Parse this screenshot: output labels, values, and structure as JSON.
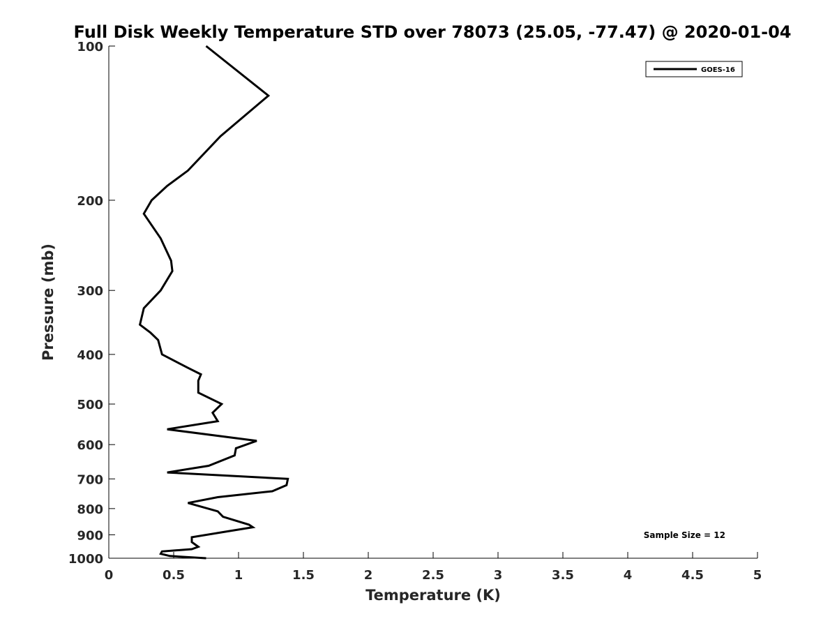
{
  "chart_data": {
    "type": "line",
    "title": "Full Disk Weekly Temperature STD over 78073 (25.05, -77.47) @ 2020-01-04",
    "xlabel": "Temperature (K)",
    "ylabel": "Pressure (mb)",
    "xlim": [
      0,
      5
    ],
    "ylim": [
      100,
      1000
    ],
    "y_scale": "log",
    "y_reversed": true,
    "x_ticks": [
      "0",
      "0.5",
      "1",
      "1.5",
      "2",
      "2.5",
      "3",
      "3.5",
      "4",
      "4.5",
      "5"
    ],
    "y_ticks": [
      "100",
      "200",
      "300",
      "400",
      "500",
      "600",
      "700",
      "800",
      "900",
      "1000"
    ],
    "legend_position": "top-right",
    "annotation": "Sample Size = 12",
    "series": [
      {
        "name": "GOES-16",
        "color": "#000000",
        "x": [
          0.75,
          1.23,
          0.86,
          0.61,
          0.45,
          0.33,
          0.27,
          0.4,
          0.48,
          0.49,
          0.4,
          0.27,
          0.24,
          0.32,
          0.38,
          0.41,
          0.61,
          0.71,
          0.69,
          0.69,
          0.87,
          0.8,
          0.84,
          0.45,
          1.14,
          0.98,
          0.97,
          0.77,
          0.45,
          1.38,
          1.37,
          1.26,
          0.84,
          0.61,
          0.84,
          0.88,
          1.08,
          1.11,
          0.87,
          0.64,
          0.64,
          0.69,
          0.64,
          0.41,
          0.4,
          0.47,
          0.75
        ],
        "y": [
          100,
          125,
          150,
          175,
          187.5,
          200,
          212.5,
          237.5,
          262.5,
          275,
          300,
          325,
          350,
          362.5,
          375,
          400,
          425,
          437.5,
          450,
          475,
          500,
          520,
          540,
          560,
          590,
          610,
          630,
          660,
          680,
          700,
          720,
          740,
          760,
          780,
          810,
          830,
          860,
          870,
          890,
          910,
          930,
          950,
          960,
          970,
          980,
          990,
          1000
        ]
      }
    ]
  }
}
